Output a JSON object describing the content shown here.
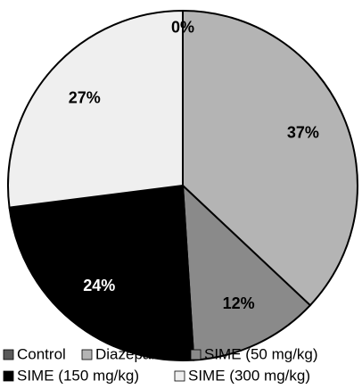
{
  "chart_data": {
    "type": "pie",
    "categories": [
      "Control",
      "Diazepam",
      "SIME (50 mg/kg)",
      "SIME (150 mg/kg)",
      "SIME (300 mg/kg)"
    ],
    "values": [
      0,
      37,
      12,
      24,
      27
    ],
    "value_labels": [
      "0%",
      "37%",
      "12%",
      "24%",
      "27%"
    ],
    "colors": [
      "#5a5a5a",
      "#b4b4b4",
      "#8a8a8a",
      "#000000",
      "#efefef"
    ],
    "legend": "bottom"
  }
}
